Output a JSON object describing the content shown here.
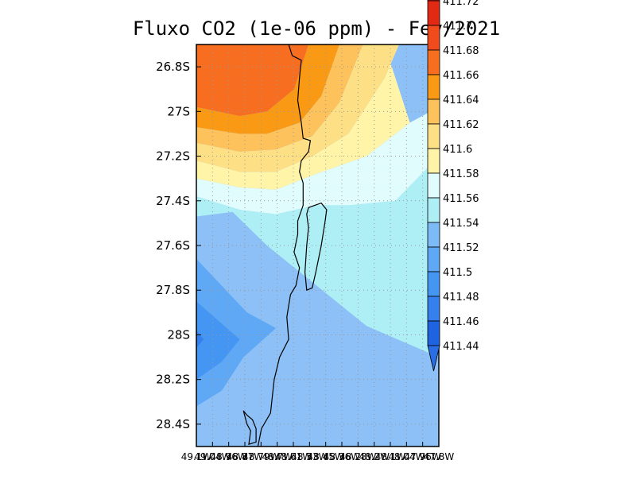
{
  "chart_data": {
    "type": "heatmap",
    "title": "Fluxo CO2 (1e-06 ppm) - Fev/2021",
    "x_range": [
      -49.14,
      -47.8
    ],
    "y_range": [
      -28.5,
      -26.7
    ],
    "x_tick_labels": [
      "49.1W",
      "49.04W",
      "48.96W",
      "48.87W",
      "48.79W",
      "48.7W",
      "48.61W",
      "48.53W",
      "48.45W",
      "48.36W",
      "48.28W",
      "48.2W",
      "48.1W",
      "48.04W",
      "47.96W",
      "47.8W"
    ],
    "y_ticks": [
      {
        "value": -26.8,
        "label": "26.8S"
      },
      {
        "value": -27.0,
        "label": "27S"
      },
      {
        "value": -27.2,
        "label": "27.2S"
      },
      {
        "value": -27.4,
        "label": "27.4S"
      },
      {
        "value": -27.6,
        "label": "27.6S"
      },
      {
        "value": -27.8,
        "label": "27.8S"
      },
      {
        "value": -28.0,
        "label": "28S"
      },
      {
        "value": -28.2,
        "label": "28.2S"
      },
      {
        "value": -28.4,
        "label": "28.4S"
      }
    ],
    "grid": true,
    "colorbar": {
      "position": "right",
      "levels": [
        {
          "label": "411.72",
          "color": "#c8140e"
        },
        {
          "label": "411.7",
          "color": "#e02a14"
        },
        {
          "label": "411.68",
          "color": "#f04b1c"
        },
        {
          "label": "411.66",
          "color": "#f86e20"
        },
        {
          "label": "411.64",
          "color": "#fa9a14"
        },
        {
          "label": "411.62",
          "color": "#fdc25c"
        },
        {
          "label": "411.6",
          "color": "#fde085"
        },
        {
          "label": "411.58",
          "color": "#fff4a8"
        },
        {
          "label": "411.56",
          "color": "#e0fcfc"
        },
        {
          "label": "411.54",
          "color": "#aeeff6"
        },
        {
          "label": "411.52",
          "color": "#7dbbf7"
        },
        {
          "label": "411.5",
          "color": "#5ea8f5"
        },
        {
          "label": "411.48",
          "color": "#4596f2"
        },
        {
          "label": "411.46",
          "color": "#3680ee"
        },
        {
          "label": "411.44",
          "color": "#1f63e0"
        }
      ]
    },
    "regions": [
      {
        "level": "411.54",
        "polygon": [
          [
            -49.14,
            -27.38
          ],
          [
            -48.9,
            -27.44
          ],
          [
            -48.7,
            -27.46
          ],
          [
            -48.48,
            -27.42
          ],
          [
            -48.3,
            -27.42
          ],
          [
            -48.04,
            -27.4
          ],
          [
            -47.8,
            -27.2
          ],
          [
            -47.8,
            -28.1
          ],
          [
            -48.2,
            -27.96
          ],
          [
            -48.75,
            -27.6
          ],
          [
            -48.94,
            -27.45
          ],
          [
            -49.14,
            -27.47
          ]
        ]
      },
      {
        "level": "411.56",
        "polygon": [
          [
            -49.14,
            -27.3
          ],
          [
            -48.9,
            -27.34
          ],
          [
            -48.7,
            -27.35
          ],
          [
            -48.48,
            -27.28
          ],
          [
            -48.2,
            -27.2
          ],
          [
            -47.96,
            -27.05
          ],
          [
            -47.8,
            -26.98
          ],
          [
            -47.8,
            -27.2
          ],
          [
            -48.04,
            -27.4
          ],
          [
            -48.3,
            -27.42
          ],
          [
            -48.48,
            -27.42
          ],
          [
            -48.7,
            -27.46
          ],
          [
            -48.9,
            -27.44
          ],
          [
            -49.14,
            -27.38
          ]
        ]
      },
      {
        "level": "411.58",
        "polygon": [
          [
            -49.14,
            -27.22
          ],
          [
            -48.9,
            -27.27
          ],
          [
            -48.7,
            -27.27
          ],
          [
            -48.5,
            -27.2
          ],
          [
            -48.3,
            -27.1
          ],
          [
            -48.1,
            -26.85
          ],
          [
            -48.02,
            -26.7
          ],
          [
            -48.1,
            -26.7
          ],
          [
            -47.96,
            -27.05
          ],
          [
            -48.2,
            -27.2
          ],
          [
            -48.48,
            -27.28
          ],
          [
            -48.7,
            -27.35
          ],
          [
            -48.9,
            -27.34
          ],
          [
            -49.14,
            -27.3
          ]
        ]
      },
      {
        "level": "411.6",
        "polygon": [
          [
            -49.14,
            -27.14
          ],
          [
            -48.9,
            -27.18
          ],
          [
            -48.7,
            -27.17
          ],
          [
            -48.5,
            -27.11
          ],
          [
            -48.35,
            -26.96
          ],
          [
            -48.22,
            -26.7
          ],
          [
            -48.02,
            -26.7
          ],
          [
            -48.1,
            -26.85
          ],
          [
            -48.3,
            -27.1
          ],
          [
            -48.5,
            -27.2
          ],
          [
            -48.7,
            -27.27
          ],
          [
            -48.9,
            -27.27
          ],
          [
            -49.14,
            -27.22
          ]
        ]
      },
      {
        "level": "411.62",
        "polygon": [
          [
            -49.14,
            -27.07
          ],
          [
            -48.9,
            -27.1
          ],
          [
            -48.75,
            -27.1
          ],
          [
            -48.57,
            -27.05
          ],
          [
            -48.45,
            -26.93
          ],
          [
            -48.35,
            -26.7
          ],
          [
            -48.22,
            -26.7
          ],
          [
            -48.35,
            -26.96
          ],
          [
            -48.5,
            -27.11
          ],
          [
            -48.7,
            -27.17
          ],
          [
            -48.9,
            -27.18
          ],
          [
            -49.14,
            -27.14
          ]
        ]
      },
      {
        "level": "411.64",
        "polygon": [
          [
            -49.14,
            -26.98
          ],
          [
            -48.9,
            -27.02
          ],
          [
            -48.75,
            -27.0
          ],
          [
            -48.6,
            -26.9
          ],
          [
            -48.52,
            -26.7
          ],
          [
            -48.35,
            -26.7
          ],
          [
            -48.45,
            -26.93
          ],
          [
            -48.57,
            -27.05
          ],
          [
            -48.75,
            -27.1
          ],
          [
            -48.9,
            -27.1
          ],
          [
            -49.14,
            -27.07
          ]
        ]
      },
      {
        "level": "411.66",
        "polygon": [
          [
            -49.14,
            -26.7
          ],
          [
            -48.52,
            -26.7
          ],
          [
            -48.6,
            -26.9
          ],
          [
            -48.75,
            -27.0
          ],
          [
            -48.9,
            -27.02
          ],
          [
            -49.14,
            -26.98
          ]
        ]
      },
      {
        "level": "411.5",
        "polygon": [
          [
            -49.14,
            -27.66
          ],
          [
            -49.0,
            -27.78
          ],
          [
            -48.86,
            -27.9
          ],
          [
            -48.7,
            -27.97
          ],
          [
            -48.88,
            -28.1
          ],
          [
            -49.0,
            -28.25
          ],
          [
            -49.14,
            -28.32
          ]
        ]
      },
      {
        "level": "411.48",
        "polygon": [
          [
            -49.14,
            -27.85
          ],
          [
            -49.0,
            -27.95
          ],
          [
            -48.9,
            -28.02
          ],
          [
            -49.0,
            -28.12
          ],
          [
            -49.14,
            -28.2
          ]
        ]
      },
      {
        "level": "411.46",
        "polygon": [
          [
            -49.14,
            -27.98
          ],
          [
            -49.1,
            -28.02
          ],
          [
            -49.14,
            -28.06
          ]
        ]
      }
    ],
    "coastline": [
      [
        -48.63,
        -26.7
      ],
      [
        -48.61,
        -26.75
      ],
      [
        -48.56,
        -26.77
      ],
      [
        -48.57,
        -26.85
      ],
      [
        -48.58,
        -26.95
      ],
      [
        -48.56,
        -27.05
      ],
      [
        -48.55,
        -27.12
      ],
      [
        -48.51,
        -27.13
      ],
      [
        -48.52,
        -27.18
      ],
      [
        -48.56,
        -27.22
      ],
      [
        -48.57,
        -27.27
      ],
      [
        -48.55,
        -27.32
      ],
      [
        -48.55,
        -27.42
      ],
      [
        -48.58,
        -27.49
      ],
      [
        -48.58,
        -27.55
      ],
      [
        -48.6,
        -27.63
      ],
      [
        -48.57,
        -27.7
      ],
      [
        -48.59,
        -27.78
      ],
      [
        -48.62,
        -27.82
      ],
      [
        -48.64,
        -27.92
      ],
      [
        -48.63,
        -28.02
      ],
      [
        -48.68,
        -28.1
      ],
      [
        -48.71,
        -28.2
      ],
      [
        -48.73,
        -28.35
      ],
      [
        -48.78,
        -28.42
      ],
      [
        -48.8,
        -28.5
      ]
    ],
    "island": [
      [
        -48.52,
        -27.43
      ],
      [
        -48.45,
        -27.41
      ],
      [
        -48.42,
        -27.44
      ],
      [
        -48.43,
        -27.5
      ],
      [
        -48.45,
        -27.6
      ],
      [
        -48.48,
        -27.72
      ],
      [
        -48.5,
        -27.79
      ],
      [
        -48.53,
        -27.8
      ],
      [
        -48.54,
        -27.72
      ],
      [
        -48.53,
        -27.6
      ],
      [
        -48.52,
        -27.52
      ],
      [
        -48.53,
        -27.46
      ]
    ],
    "lagoon": [
      [
        -48.88,
        -28.34
      ],
      [
        -48.86,
        -28.36
      ],
      [
        -48.83,
        -28.38
      ],
      [
        -48.81,
        -28.42
      ],
      [
        -48.81,
        -28.48
      ],
      [
        -48.85,
        -28.49
      ],
      [
        -48.84,
        -28.43
      ],
      [
        -48.86,
        -28.4
      ]
    ]
  }
}
